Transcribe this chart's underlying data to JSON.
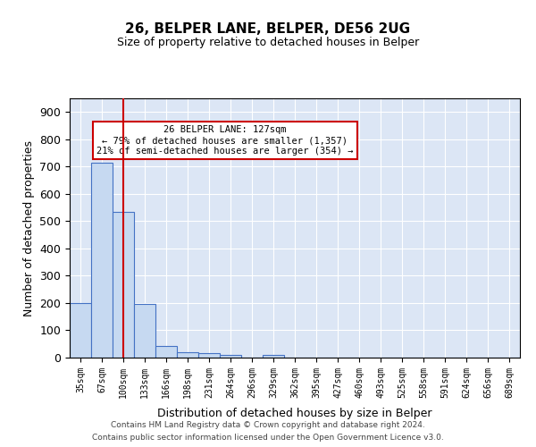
{
  "title1": "26, BELPER LANE, BELPER, DE56 2UG",
  "title2": "Size of property relative to detached houses in Belper",
  "xlabel": "Distribution of detached houses by size in Belper",
  "ylabel": "Number of detached properties",
  "bin_labels": [
    "35sqm",
    "67sqm",
    "100sqm",
    "133sqm",
    "166sqm",
    "198sqm",
    "231sqm",
    "264sqm",
    "296sqm",
    "329sqm",
    "362sqm",
    "395sqm",
    "427sqm",
    "460sqm",
    "493sqm",
    "525sqm",
    "558sqm",
    "591sqm",
    "624sqm",
    "656sqm",
    "689sqm"
  ],
  "bar_values": [
    200,
    715,
    535,
    195,
    43,
    20,
    15,
    10,
    0,
    10,
    0,
    0,
    0,
    0,
    0,
    0,
    0,
    0,
    0,
    0,
    0
  ],
  "bar_color": "#c6d9f1",
  "bar_edge_color": "#4472c4",
  "red_line_x": 2.0,
  "annotation_text": "26 BELPER LANE: 127sqm\n← 79% of detached houses are smaller (1,357)\n21% of semi-detached houses are larger (354) →",
  "annotation_box_color": "#ffffff",
  "annotation_box_edge": "#cc0000",
  "ylim": [
    0,
    950
  ],
  "yticks": [
    0,
    100,
    200,
    300,
    400,
    500,
    600,
    700,
    800,
    900
  ],
  "footer1": "Contains HM Land Registry data © Crown copyright and database right 2024.",
  "footer2": "Contains public sector information licensed under the Open Government Licence v3.0.",
  "plot_bg_color": "#dce6f5"
}
